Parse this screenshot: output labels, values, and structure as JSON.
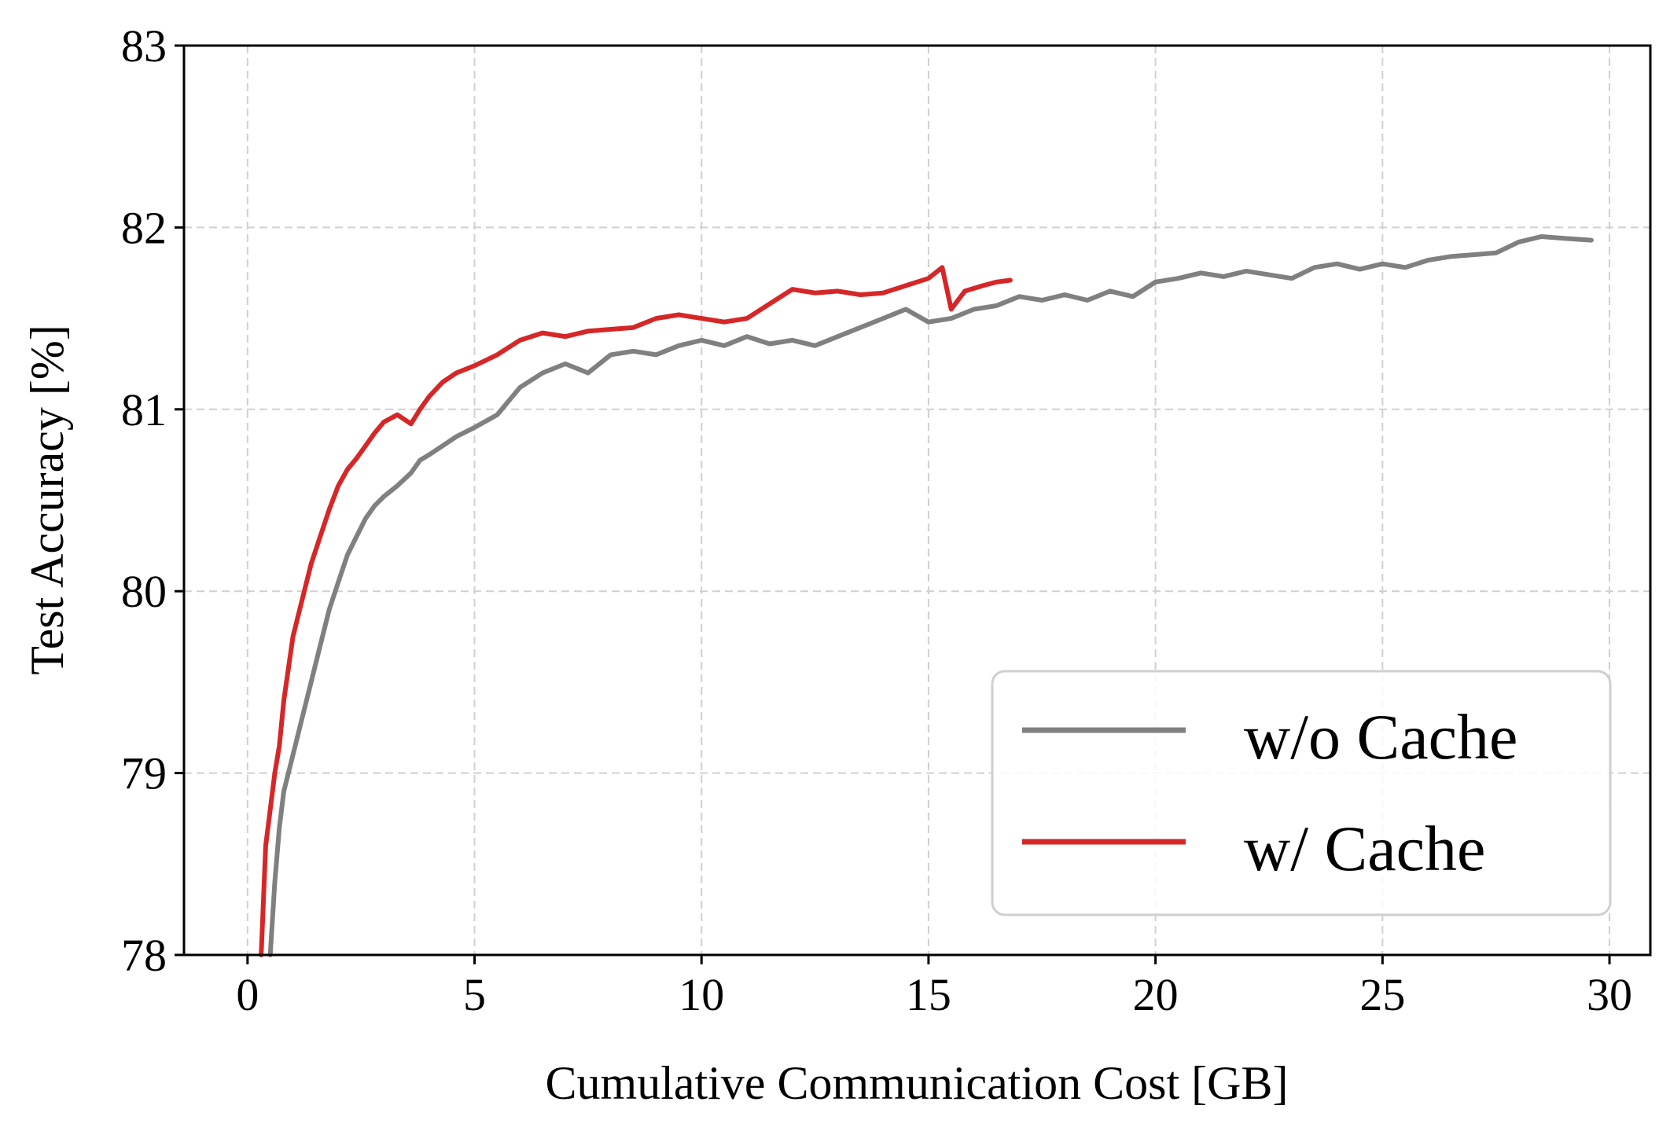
{
  "chart_data": {
    "type": "line",
    "title": "",
    "xlabel": "Cumulative Communication Cost [GB]",
    "ylabel": "Test Accuracy [%]",
    "xlim": [
      -1.4,
      30.9
    ],
    "ylim": [
      78,
      83
    ],
    "xticks": [
      "0",
      "5",
      "10",
      "15",
      "20",
      "25",
      "30"
    ],
    "yticks": [
      "78",
      "79",
      "80",
      "81",
      "82",
      "83"
    ],
    "grid": true,
    "legend_position": "lower-right",
    "series": [
      {
        "name": "w/o Cache",
        "color": "#808080",
        "x": [
          0.5,
          0.6,
          0.7,
          0.8,
          1.0,
          1.2,
          1.4,
          1.6,
          1.8,
          2.0,
          2.2,
          2.4,
          2.6,
          2.8,
          3.0,
          3.3,
          3.6,
          3.8,
          4.0,
          4.3,
          4.6,
          5.0,
          5.5,
          6.0,
          6.5,
          7.0,
          7.5,
          8.0,
          8.5,
          9.0,
          9.5,
          10.0,
          10.5,
          11.0,
          11.5,
          12.0,
          12.5,
          13.0,
          13.5,
          14.0,
          14.5,
          15.0,
          15.5,
          16.0,
          16.5,
          17.0,
          17.5,
          18.0,
          18.5,
          19.0,
          19.5,
          20.0,
          20.5,
          21.0,
          21.5,
          22.0,
          22.5,
          23.0,
          23.5,
          24.0,
          24.5,
          25.0,
          25.5,
          26.0,
          26.5,
          27.0,
          27.5,
          28.0,
          28.5,
          29.0,
          29.6
        ],
        "y": [
          78.0,
          78.4,
          78.7,
          78.9,
          79.1,
          79.3,
          79.5,
          79.7,
          79.9,
          80.05,
          80.2,
          80.3,
          80.4,
          80.47,
          80.52,
          80.58,
          80.65,
          80.72,
          80.75,
          80.8,
          80.85,
          80.9,
          80.97,
          81.12,
          81.2,
          81.25,
          81.2,
          81.3,
          81.32,
          81.3,
          81.35,
          81.38,
          81.35,
          81.4,
          81.36,
          81.38,
          81.35,
          81.4,
          81.45,
          81.5,
          81.55,
          81.48,
          81.5,
          81.55,
          81.57,
          81.62,
          81.6,
          81.63,
          81.6,
          81.65,
          81.62,
          81.7,
          81.72,
          81.75,
          81.73,
          81.76,
          81.74,
          81.72,
          81.78,
          81.8,
          81.77,
          81.8,
          81.78,
          81.82,
          81.84,
          81.85,
          81.86,
          81.92,
          81.95,
          81.94,
          81.93
        ]
      },
      {
        "name": "w/ Cache",
        "color": "#d62728",
        "x": [
          0.3,
          0.4,
          0.5,
          0.6,
          0.7,
          0.8,
          1.0,
          1.2,
          1.4,
          1.6,
          1.8,
          2.0,
          2.2,
          2.4,
          2.6,
          2.8,
          3.0,
          3.3,
          3.6,
          3.8,
          4.0,
          4.3,
          4.6,
          5.0,
          5.5,
          6.0,
          6.5,
          7.0,
          7.5,
          8.0,
          8.5,
          9.0,
          9.5,
          10.0,
          10.5,
          11.0,
          11.5,
          12.0,
          12.5,
          13.0,
          13.5,
          14.0,
          14.5,
          15.0,
          15.3,
          15.5,
          15.8,
          16.2,
          16.5,
          16.8
        ],
        "y": [
          78.0,
          78.6,
          78.8,
          79.0,
          79.15,
          79.4,
          79.75,
          79.95,
          80.15,
          80.3,
          80.45,
          80.58,
          80.67,
          80.73,
          80.8,
          80.87,
          80.93,
          80.97,
          80.92,
          81.0,
          81.07,
          81.15,
          81.2,
          81.24,
          81.3,
          81.38,
          81.42,
          81.4,
          81.43,
          81.44,
          81.45,
          81.5,
          81.52,
          81.5,
          81.48,
          81.5,
          81.58,
          81.66,
          81.64,
          81.65,
          81.63,
          81.64,
          81.68,
          81.72,
          81.78,
          81.55,
          81.65,
          81.68,
          81.7,
          81.71
        ]
      }
    ]
  }
}
